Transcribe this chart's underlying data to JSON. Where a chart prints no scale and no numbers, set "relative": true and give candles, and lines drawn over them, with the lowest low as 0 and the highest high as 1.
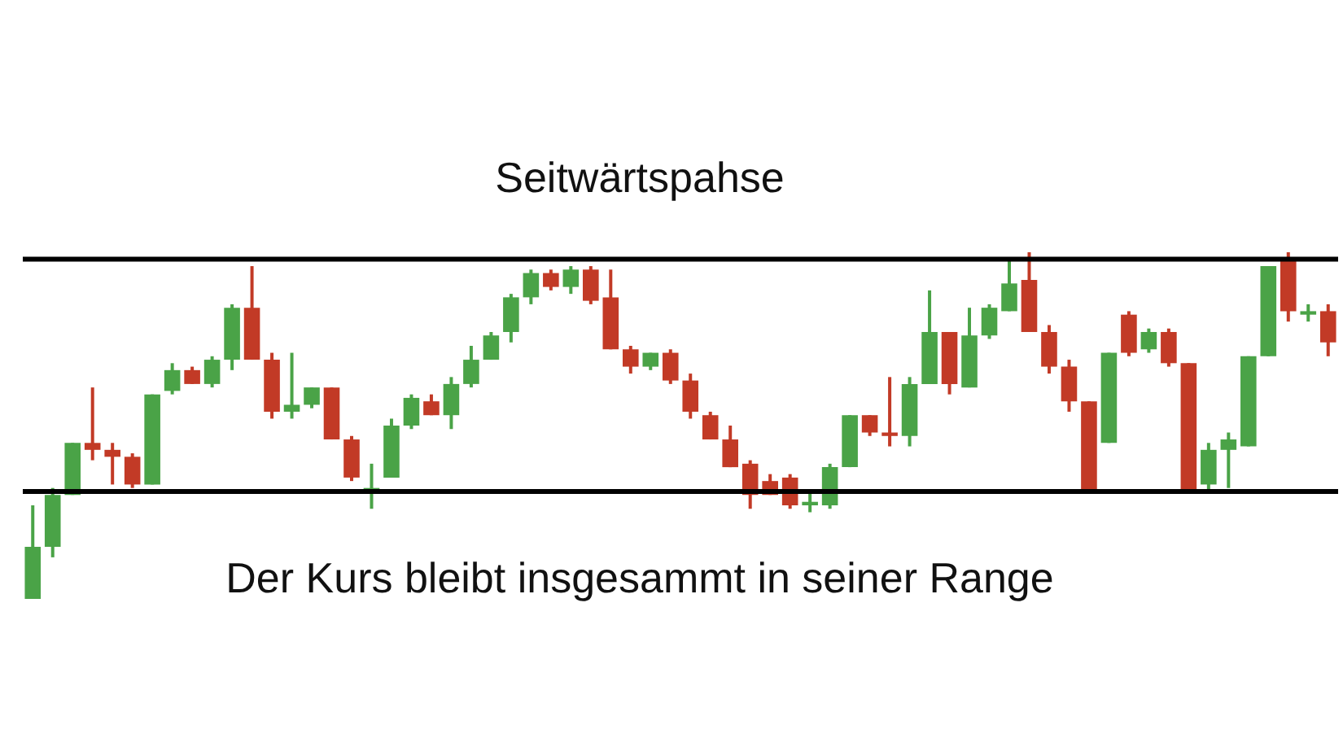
{
  "chart_data": {
    "type": "candlestick",
    "title": "Seitwärtspahse",
    "annotations": [
      "Der Kurs bleibt insgesammt in seiner Range"
    ],
    "relative": true,
    "categories": [
      null,
      null,
      null,
      null,
      null,
      null,
      null,
      null,
      null,
      null,
      null,
      null,
      null,
      null,
      null,
      null,
      null,
      null,
      null,
      null,
      null,
      null,
      null,
      null,
      null,
      null,
      null,
      null,
      null,
      null,
      null,
      null,
      null,
      null,
      null,
      null,
      null,
      null,
      null,
      null,
      null,
      null,
      null,
      null,
      null,
      null,
      null,
      null,
      null,
      null,
      null,
      null,
      null,
      null,
      null,
      null,
      null,
      null,
      null,
      null,
      null,
      null,
      null,
      null,
      null,
      null
    ],
    "ohlc": [
      [
        0,
        0.27,
        0,
        0.15
      ],
      [
        0.15,
        0.32,
        0.12,
        0.3
      ],
      [
        0.3,
        0.45,
        0.3,
        0.45
      ],
      [
        0.45,
        0.61,
        0.4,
        0.43
      ],
      [
        0.43,
        0.45,
        0.33,
        0.41
      ],
      [
        0.41,
        0.42,
        0.32,
        0.33
      ],
      [
        0.33,
        0.59,
        0.33,
        0.59
      ],
      [
        0.6,
        0.68,
        0.59,
        0.66
      ],
      [
        0.66,
        0.67,
        0.62,
        0.62
      ],
      [
        0.62,
        0.7,
        0.61,
        0.69
      ],
      [
        0.69,
        0.85,
        0.66,
        0.84
      ],
      [
        0.84,
        0.96,
        0.69,
        0.69
      ],
      [
        0.69,
        0.71,
        0.52,
        0.54
      ],
      [
        0.54,
        0.71,
        0.52,
        0.56
      ],
      [
        0.56,
        0.61,
        0.55,
        0.61
      ],
      [
        0.61,
        0.61,
        0.46,
        0.46
      ],
      [
        0.46,
        0.47,
        0.34,
        0.35
      ],
      [
        0.31,
        0.39,
        0.26,
        0.32
      ],
      [
        0.35,
        0.52,
        0.35,
        0.5
      ],
      [
        0.5,
        0.59,
        0.49,
        0.58
      ],
      [
        0.57,
        0.59,
        0.53,
        0.53
      ],
      [
        0.53,
        0.64,
        0.49,
        0.62
      ],
      [
        0.62,
        0.73,
        0.61,
        0.69
      ],
      [
        0.69,
        0.77,
        0.69,
        0.76
      ],
      [
        0.77,
        0.88,
        0.74,
        0.87
      ],
      [
        0.87,
        0.95,
        0.85,
        0.94
      ],
      [
        0.94,
        0.95,
        0.89,
        0.9
      ],
      [
        0.9,
        0.96,
        0.88,
        0.95
      ],
      [
        0.95,
        0.96,
        0.85,
        0.86
      ],
      [
        0.87,
        0.95,
        0.72,
        0.72
      ],
      [
        0.72,
        0.73,
        0.65,
        0.67
      ],
      [
        0.67,
        0.71,
        0.66,
        0.71
      ],
      [
        0.71,
        0.72,
        0.62,
        0.63
      ],
      [
        0.63,
        0.65,
        0.52,
        0.54
      ],
      [
        0.53,
        0.54,
        0.46,
        0.46
      ],
      [
        0.46,
        0.5,
        0.38,
        0.38
      ],
      [
        0.39,
        0.4,
        0.26,
        0.3
      ],
      [
        0.34,
        0.36,
        0.3,
        0.3
      ],
      [
        0.35,
        0.36,
        0.26,
        0.27
      ],
      [
        0.27,
        0.31,
        0.25,
        0.28
      ],
      [
        0.27,
        0.39,
        0.26,
        0.38
      ],
      [
        0.38,
        0.53,
        0.38,
        0.53
      ],
      [
        0.53,
        0.53,
        0.47,
        0.48
      ],
      [
        0.48,
        0.64,
        0.44,
        0.47
      ],
      [
        0.47,
        0.64,
        0.44,
        0.62
      ],
      [
        0.62,
        0.89,
        0.62,
        0.77
      ],
      [
        0.77,
        0.77,
        0.59,
        0.62
      ],
      [
        0.61,
        0.84,
        0.61,
        0.76
      ],
      [
        0.76,
        0.85,
        0.75,
        0.84
      ],
      [
        0.83,
        0.98,
        0.83,
        0.91
      ],
      [
        0.92,
        1,
        0.77,
        0.77
      ],
      [
        0.77,
        0.79,
        0.65,
        0.67
      ],
      [
        0.67,
        0.69,
        0.54,
        0.57
      ],
      [
        0.57,
        0.57,
        0.31,
        0.31
      ],
      [
        0.45,
        0.71,
        0.45,
        0.71
      ],
      [
        0.82,
        0.83,
        0.7,
        0.71
      ],
      [
        0.72,
        0.78,
        0.71,
        0.77
      ],
      [
        0.77,
        0.78,
        0.67,
        0.68
      ],
      [
        0.68,
        0.68,
        0.31,
        0.31
      ],
      [
        0.33,
        0.45,
        0.31,
        0.43
      ],
      [
        0.43,
        0.48,
        0.32,
        0.46
      ],
      [
        0.44,
        0.7,
        0.44,
        0.7
      ],
      [
        0.7,
        0.96,
        0.7,
        0.96
      ],
      [
        0.98,
        1,
        0.8,
        0.83
      ],
      [
        0.82,
        0.85,
        0.8,
        0.83
      ],
      [
        0.83,
        0.85,
        0.7,
        0.74
      ]
    ],
    "colors": [
      "#4aa347",
      "#4aa347",
      "#4aa347",
      "#c23a26",
      "#c23a26",
      "#c23a26",
      "#4aa347",
      "#4aa347",
      "#c23a26",
      "#4aa347",
      "#4aa347",
      "#c23a26",
      "#c23a26",
      "#4aa347",
      "#4aa347",
      "#c23a26",
      "#c23a26",
      "#4aa347",
      "#4aa347",
      "#4aa347",
      "#c23a26",
      "#4aa347",
      "#4aa347",
      "#4aa347",
      "#4aa347",
      "#4aa347",
      "#c23a26",
      "#4aa347",
      "#c23a26",
      "#c23a26",
      "#c23a26",
      "#4aa347",
      "#c23a26",
      "#c23a26",
      "#c23a26",
      "#c23a26",
      "#c23a26",
      "#c23a26",
      "#c23a26",
      "#4aa347",
      "#4aa347",
      "#4aa347",
      "#c23a26",
      "#c23a26",
      "#4aa347",
      "#4aa347",
      "#c23a26",
      "#4aa347",
      "#4aa347",
      "#4aa347",
      "#c23a26",
      "#c23a26",
      "#c23a26",
      "#c23a26",
      "#4aa347",
      "#c23a26",
      "#4aa347",
      "#c23a26",
      "#c23a26",
      "#4aa347",
      "#4aa347",
      "#4aa347",
      "#4aa347",
      "#c23a26",
      "#4aa347",
      "#c23a26"
    ],
    "ref_lines": [
      {
        "axis": "y",
        "value": 0.98,
        "color": "#000000"
      },
      {
        "axis": "y",
        "value": 0.31,
        "color": "#000000"
      }
    ]
  }
}
